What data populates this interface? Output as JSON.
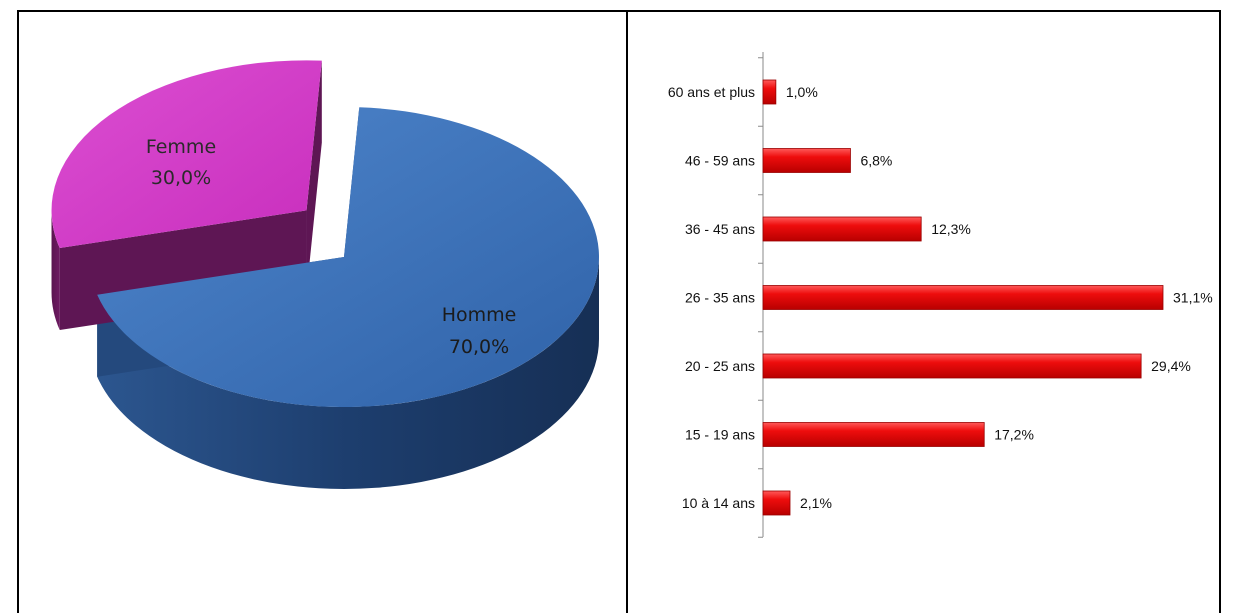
{
  "chart_data": [
    {
      "type": "pie",
      "categories": [
        "Homme",
        "Femme"
      ],
      "values": [
        70.0,
        30.0
      ],
      "labels": [
        "70,0%",
        "30,0%"
      ],
      "colors": [
        "#3d73b8",
        "#d33cc8"
      ],
      "exploded": "Femme",
      "style": "3d"
    },
    {
      "type": "bar",
      "orientation": "horizontal",
      "categories": [
        "60 ans et plus",
        "46 - 59 ans",
        "36 - 45 ans",
        "26 - 35 ans",
        "20 - 25 ans",
        "15 - 19 ans",
        "10 à 14 ans"
      ],
      "values": [
        1.0,
        6.8,
        12.3,
        31.1,
        29.4,
        17.2,
        2.1
      ],
      "labels": [
        "1,0%",
        "6,8%",
        "12,3%",
        "31,1%",
        "29,4%",
        "17,2%",
        "2,1%"
      ],
      "color": "#ee0d0d",
      "xlim": [
        0,
        31.1
      ],
      "grid": false
    }
  ]
}
